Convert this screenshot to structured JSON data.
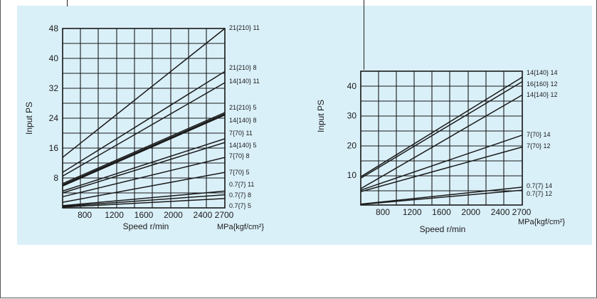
{
  "colors": {
    "panel_bg": "#daf0f9",
    "line": "#1a1a1a",
    "grid": "#1a1a1a"
  },
  "chart_data": [
    {
      "type": "line",
      "ylabel": "Input PS",
      "xlabel": "Speed r/min",
      "unit_label": "MPa{kgf/cm²}",
      "xlim": [
        500,
        2700
      ],
      "ylim": [
        0,
        48
      ],
      "xticks": [
        "800",
        "1200",
        "1600",
        "2000",
        "2400",
        "2700"
      ],
      "yticks": [
        "8",
        "16",
        "24",
        "32",
        "40",
        "48"
      ],
      "grid": true,
      "series": [
        {
          "name": "21{210} 11",
          "x": [
            500,
            2700
          ],
          "y": [
            13.5,
            48.0
          ]
        },
        {
          "name": "21{210} 8",
          "x": [
            500,
            2700
          ],
          "y": [
            9.5,
            36.5
          ]
        },
        {
          "name": "14{140} 11",
          "x": [
            500,
            2700
          ],
          "y": [
            8.5,
            33.5
          ]
        },
        {
          "name": "21{210} 5",
          "x": [
            500,
            2700
          ],
          "y": [
            6.5,
            25.5
          ]
        },
        {
          "name": "14{140} 8",
          "x": [
            500,
            2700
          ],
          "y": [
            6.0,
            25.0
          ]
        },
        {
          "name": "7{70} 11",
          "x": [
            500,
            2700
          ],
          "y": [
            4.5,
            18.5
          ]
        },
        {
          "name": "14{140} 5",
          "x": [
            500,
            2700
          ],
          "y": [
            4.0,
            17.5
          ]
        },
        {
          "name": "7{70} 8",
          "x": [
            500,
            2700
          ],
          "y": [
            3.0,
            13.5
          ]
        },
        {
          "name": "7{70} 5",
          "x": [
            500,
            2700
          ],
          "y": [
            1.5,
            9.5
          ]
        },
        {
          "name": "0.7{7} 11",
          "x": [
            500,
            2700
          ],
          "y": [
            0.6,
            4.5
          ]
        },
        {
          "name": "0.7{7} 8",
          "x": [
            500,
            2700
          ],
          "y": [
            0.4,
            3.5
          ]
        },
        {
          "name": "0.7{7} 5",
          "x": [
            500,
            2700
          ],
          "y": [
            0.2,
            2.5
          ]
        }
      ],
      "labels": [
        "21{210} 11",
        "21{210} 8",
        "14{140} 11",
        "21{210} 5",
        "14{140} 8",
        "7{70} 11",
        "14{140} 5",
        "7{70} 8",
        "7{70} 5",
        "0.7{7} 11",
        "0.7{7} 8",
        "0.7{7} 5"
      ]
    },
    {
      "type": "line",
      "ylabel": "Input PS",
      "xlabel": "Speed r/min",
      "unit_label": "MPa{kgf/cm²}",
      "xlim": [
        500,
        2700
      ],
      "ylim": [
        0,
        45
      ],
      "xticks": [
        "800",
        "1200",
        "1600",
        "2000",
        "2400",
        "2700"
      ],
      "yticks": [
        "10",
        "20",
        "30",
        "40"
      ],
      "grid": true,
      "series": [
        {
          "name": "14{140} 14",
          "x": [
            500,
            2700
          ],
          "y": [
            9.5,
            43.0
          ]
        },
        {
          "name": "16{160} 12",
          "x": [
            500,
            2700
          ],
          "y": [
            9.0,
            41.5
          ]
        },
        {
          "name": "14{140} 12",
          "x": [
            500,
            2700
          ],
          "y": [
            5.5,
            37.0
          ]
        },
        {
          "name": "7{70} 14",
          "x": [
            500,
            2700
          ],
          "y": [
            5.0,
            23.5
          ]
        },
        {
          "name": "7{70} 12",
          "x": [
            500,
            2700
          ],
          "y": [
            4.5,
            19.5
          ]
        },
        {
          "name": "0.7{7} 14",
          "x": [
            500,
            2700
          ],
          "y": [
            0.3,
            6.0
          ]
        },
        {
          "name": "0.7{7} 12",
          "x": [
            500,
            2700
          ],
          "y": [
            0.2,
            5.0
          ]
        }
      ],
      "labels": [
        "14{140} 14",
        "16{160} 12",
        "14{140} 12",
        "7{70} 14",
        "7{70} 12",
        "0.7{7} 14",
        "0.7{7} 12"
      ]
    }
  ]
}
